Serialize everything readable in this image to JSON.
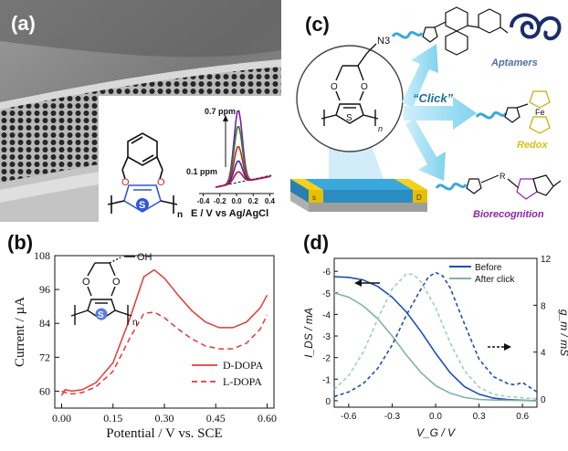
{
  "panels": {
    "a": {
      "label": "(a)",
      "inset_cv": {
        "xlabel": "E / V vs Ag/AgCl",
        "ticks": [
          "-0.4",
          "-0.2",
          "0.0",
          "0.2",
          "0.4"
        ],
        "xlim": [
          -0.45,
          0.45
        ],
        "annot_high": "0.7 ppm",
        "annot_low": "0.1 ppm",
        "curves": [
          {
            "color": "#7b1fa2",
            "height": 1.0
          },
          {
            "color": "#2e7d32",
            "height": 0.78
          },
          {
            "color": "#c62828",
            "height": 0.5
          },
          {
            "color": "#4527a0",
            "height": 0.3
          },
          {
            "color": "#ad1457",
            "height": 0.15
          }
        ]
      },
      "polymer_label": "n",
      "ring_atoms": [
        "O",
        "O",
        "S"
      ]
    },
    "b": {
      "label": "(b)",
      "substituent": "OH",
      "ring_atoms": [
        "O",
        "O",
        "S"
      ],
      "repeat_label": "n"
    },
    "c": {
      "label": "(c)",
      "substituent": "N3",
      "repeat_label": "n",
      "click_label": "“Click”",
      "device_labels": [
        "s",
        "D"
      ],
      "targets": [
        {
          "name": "Aptamers",
          "color": "#4a6fa5"
        },
        {
          "name": "Redox",
          "color": "#d4c21a"
        },
        {
          "name": "Biorecognition",
          "color": "#8e24aa"
        }
      ],
      "ferrocene_label": "Fe",
      "linker_label": "R"
    },
    "d": {
      "label": "(d)"
    }
  },
  "chart_data": [
    {
      "type": "line",
      "panel": "b",
      "xlabel": "Potential / V vs. SCE",
      "ylabel": "Current / µA",
      "xlim": [
        -0.02,
        0.62
      ],
      "ylim": [
        54,
        108
      ],
      "xticks": [
        "0.00",
        "0.15",
        "0.30",
        "0.45",
        "0.60"
      ],
      "yticks": [
        "60",
        "72",
        "84",
        "96",
        "108"
      ],
      "legend_position": "bottom-right",
      "series": [
        {
          "name": "D-DOPA",
          "style": "solid",
          "color": "#e53935",
          "x": [
            0.0,
            0.01,
            0.03,
            0.06,
            0.1,
            0.15,
            0.2,
            0.24,
            0.27,
            0.3,
            0.34,
            0.38,
            0.42,
            0.46,
            0.5,
            0.54,
            0.58,
            0.6
          ],
          "y": [
            58.5,
            60.5,
            60.0,
            60.5,
            63.0,
            70.0,
            86.0,
            100.5,
            103.0,
            100.0,
            94.0,
            88.5,
            84.5,
            82.5,
            82.5,
            84.5,
            89.5,
            94.0
          ]
        },
        {
          "name": "L-DOPA",
          "style": "dashed",
          "color": "#e53935",
          "x": [
            0.0,
            0.01,
            0.03,
            0.06,
            0.1,
            0.15,
            0.2,
            0.24,
            0.27,
            0.3,
            0.34,
            0.38,
            0.42,
            0.46,
            0.5,
            0.54,
            0.58,
            0.6
          ],
          "y": [
            60.0,
            59.5,
            59.0,
            59.5,
            61.5,
            67.0,
            79.0,
            87.5,
            88.0,
            86.0,
            82.0,
            78.5,
            76.0,
            75.0,
            75.0,
            77.0,
            82.0,
            87.0
          ]
        }
      ]
    },
    {
      "type": "line",
      "panel": "d",
      "xlabel": "V_G / V",
      "ylabel": "I_DS / mA",
      "y2label": "g_m / mS",
      "xlim": [
        -0.7,
        0.7
      ],
      "ylim": [
        0.3,
        -6.6
      ],
      "y2lim": [
        -0.7,
        12
      ],
      "xticks": [
        "-0.6",
        "-0.3",
        "0.0",
        "0.3",
        "0.6"
      ],
      "yticks": [
        "-6",
        "-5",
        "-4",
        "-3",
        "-2",
        "-1",
        "0"
      ],
      "y2ticks": [
        "0",
        "4",
        "8",
        "12"
      ],
      "legend_position": "top-right",
      "series": [
        {
          "name": "Before",
          "axis": "left",
          "style": "solid",
          "color": "#1e4db7",
          "x": [
            -0.7,
            -0.6,
            -0.5,
            -0.4,
            -0.3,
            -0.2,
            -0.1,
            0.0,
            0.1,
            0.2,
            0.3,
            0.4,
            0.5,
            0.6,
            0.7
          ],
          "y": [
            -5.75,
            -5.72,
            -5.6,
            -5.3,
            -4.8,
            -4.1,
            -3.2,
            -2.2,
            -1.3,
            -0.65,
            -0.3,
            -0.12,
            -0.05,
            -0.02,
            0.0
          ]
        },
        {
          "name": "After click",
          "axis": "left",
          "style": "solid",
          "color": "#7fb3a3",
          "x": [
            -0.7,
            -0.6,
            -0.5,
            -0.4,
            -0.3,
            -0.2,
            -0.1,
            0.0,
            0.1,
            0.2,
            0.3,
            0.4,
            0.5,
            0.6,
            0.7
          ],
          "y": [
            -5.0,
            -4.8,
            -4.4,
            -3.8,
            -3.0,
            -2.1,
            -1.3,
            -0.7,
            -0.35,
            -0.15,
            -0.06,
            -0.03,
            -0.02,
            -0.01,
            0.0
          ]
        },
        {
          "name": "",
          "axis": "right",
          "style": "dashed",
          "color": "#1e4db7",
          "x": [
            -0.7,
            -0.6,
            -0.5,
            -0.4,
            -0.3,
            -0.2,
            -0.1,
            -0.05,
            0.0,
            0.05,
            0.1,
            0.2,
            0.3,
            0.4,
            0.5,
            0.55,
            0.6,
            0.65,
            0.7
          ],
          "y": [
            0.2,
            0.6,
            1.3,
            2.6,
            4.6,
            7.2,
            9.4,
            10.4,
            10.8,
            10.5,
            9.5,
            6.4,
            3.4,
            1.9,
            1.3,
            1.2,
            1.4,
            1.0,
            0.6
          ]
        },
        {
          "name": "",
          "axis": "right",
          "style": "dashed",
          "color": "#9ad1c0",
          "x": [
            -0.7,
            -0.6,
            -0.5,
            -0.4,
            -0.3,
            -0.2,
            -0.15,
            -0.1,
            0.0,
            0.1,
            0.2,
            0.3,
            0.4,
            0.5,
            0.6,
            0.7
          ],
          "y": [
            0.8,
            2.0,
            4.0,
            6.8,
            9.4,
            10.7,
            10.6,
            10.0,
            7.8,
            4.8,
            2.4,
            1.0,
            0.4,
            0.2,
            0.1,
            0.0
          ]
        }
      ]
    }
  ]
}
